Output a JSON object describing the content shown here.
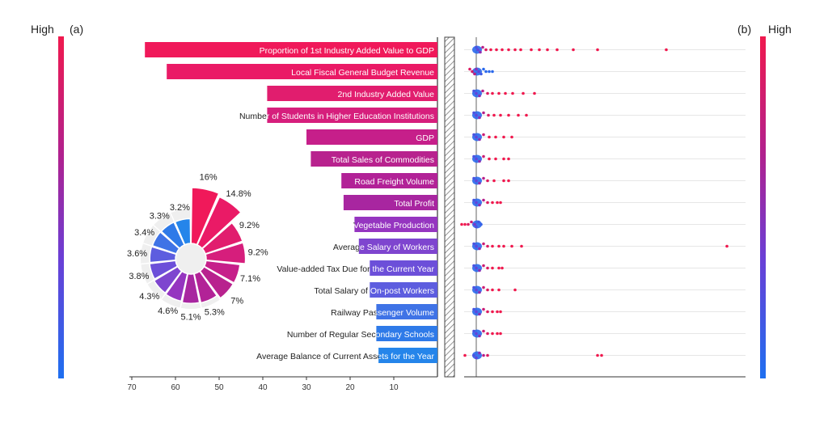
{
  "chart_data": [
    {
      "panel": "(a)",
      "type": "bar",
      "orientation": "horizontal",
      "x_direction": "reversed",
      "xlim": [
        0,
        70
      ],
      "xticks": [
        70,
        60,
        50,
        40,
        30,
        20,
        10
      ],
      "legend_top": "High",
      "categories": [
        "Proportion of 1st Industry Added Value to GDP",
        "Local Fiscal General Budget Revenue",
        "2nd Industry Added Value",
        "Number of Students in Higher Education Institutions",
        "GDP",
        "Total Sales of Commodities",
        "Road Freight Volume",
        "Total Profit",
        "Vegetable Production",
        "Average Salary of Workers",
        "Value-added Tax Due for the Current Year",
        "Total Salary of On-post Workers",
        "Railway Passenger Volume",
        "Number of Regular Secondary Schools",
        "Average Balance of Current Assets for the Year"
      ],
      "values": [
        67,
        62,
        39,
        39,
        30,
        29,
        22,
        21.5,
        19,
        18,
        15.5,
        15.5,
        14,
        14,
        13.5
      ],
      "colors": [
        "#f0195a",
        "#ea1a66",
        "#e11d6e",
        "#d61e7c",
        "#c61f8a",
        "#b8228e",
        "#b22297",
        "#a826a0",
        "#9535c0",
        "#7e45cf",
        "#6c4fd9",
        "#5d5ddf",
        "#3f73e6",
        "#2e7ae8",
        "#2585ea"
      ]
    },
    {
      "panel": "(a) inset",
      "type": "pie",
      "style": "polar-bar",
      "labels": [
        "16%",
        "14.8%",
        "9.2%",
        "9.2%",
        "7.1%",
        "7%",
        "5.3%",
        "5.1%",
        "4.6%",
        "4.3%",
        "3.8%",
        "3.6%",
        "3.4%",
        "3.3%",
        "3.2%"
      ],
      "values": [
        16,
        14.8,
        9.2,
        9.2,
        7.1,
        7,
        5.3,
        5.1,
        4.6,
        4.3,
        3.8,
        3.6,
        3.4,
        3.3,
        3.2
      ],
      "colors": [
        "#f0195a",
        "#ea1a66",
        "#e11d6e",
        "#d61e7c",
        "#c61f8a",
        "#b8228e",
        "#b22297",
        "#a826a0",
        "#9535c0",
        "#7e45cf",
        "#6c4fd9",
        "#5d5ddf",
        "#3f73e6",
        "#2e7ae8",
        "#2585ea"
      ]
    },
    {
      "panel": "(b)",
      "type": "scatter",
      "style": "beeswarm",
      "legend_top": "High",
      "colormap": [
        "#1e6ff0",
        "#6a3fd6",
        "#b0218f",
        "#f0194e"
      ],
      "rows": [
        {
          "points": [
            [
              0,
              0.2
            ],
            [
              2,
              0.3
            ],
            [
              5,
              0.5
            ],
            [
              8,
              0.7
            ],
            [
              12,
              0.9
            ],
            [
              18,
              1.0
            ],
            [
              25,
              1.0
            ],
            [
              32,
              1.0
            ],
            [
              40,
              1.0
            ],
            [
              48,
              1.0
            ],
            [
              55,
              1.0
            ],
            [
              68,
              1.0
            ],
            [
              78,
              1.0
            ],
            [
              88,
              1.0
            ],
            [
              100,
              1.0
            ],
            [
              120,
              1.0
            ],
            [
              150,
              1.0
            ],
            [
              235,
              1.0
            ]
          ]
        },
        {
          "points": [
            [
              -8,
              0.9
            ],
            [
              -5,
              0.85
            ],
            [
              -2,
              0.75
            ],
            [
              0,
              0.5
            ],
            [
              3,
              0.3
            ],
            [
              6,
              0.15
            ],
            [
              9,
              0.05
            ],
            [
              12,
              0.05
            ],
            [
              16,
              0.05
            ],
            [
              20,
              0.05
            ]
          ]
        },
        {
          "points": [
            [
              -3,
              0.2
            ],
            [
              0,
              0.3
            ],
            [
              4,
              0.5
            ],
            [
              8,
              0.7
            ],
            [
              14,
              0.9
            ],
            [
              20,
              1.0
            ],
            [
              28,
              1.0
            ],
            [
              36,
              1.0
            ],
            [
              45,
              1.0
            ],
            [
              58,
              1.0
            ],
            [
              72,
              1.0
            ]
          ]
        },
        {
          "points": [
            [
              -3,
              0.2
            ],
            [
              0,
              0.3
            ],
            [
              4,
              0.5
            ],
            [
              9,
              0.7
            ],
            [
              15,
              0.9
            ],
            [
              22,
              1.0
            ],
            [
              30,
              1.0
            ],
            [
              40,
              1.0
            ],
            [
              52,
              1.0
            ],
            [
              62,
              1.0
            ]
          ]
        },
        {
          "points": [
            [
              -3,
              0.2
            ],
            [
              0,
              0.3
            ],
            [
              4,
              0.5
            ],
            [
              9,
              0.8
            ],
            [
              16,
              1.0
            ],
            [
              24,
              1.0
            ],
            [
              34,
              1.0
            ],
            [
              44,
              1.0
            ]
          ]
        },
        {
          "points": [
            [
              -3,
              0.2
            ],
            [
              0,
              0.3
            ],
            [
              4,
              0.5
            ],
            [
              9,
              0.8
            ],
            [
              16,
              1.0
            ],
            [
              24,
              1.0
            ],
            [
              34,
              1.0
            ],
            [
              40,
              1.0
            ]
          ]
        },
        {
          "points": [
            [
              -3,
              0.2
            ],
            [
              0,
              0.3
            ],
            [
              4,
              0.5
            ],
            [
              9,
              0.7
            ],
            [
              14,
              0.9
            ],
            [
              22,
              1.0
            ],
            [
              34,
              1.0
            ],
            [
              40,
              1.0
            ]
          ]
        },
        {
          "points": [
            [
              -3,
              0.2
            ],
            [
              0,
              0.3
            ],
            [
              4,
              0.5
            ],
            [
              9,
              0.7
            ],
            [
              14,
              0.9
            ],
            [
              20,
              1.0
            ],
            [
              26,
              1.0
            ],
            [
              30,
              1.0
            ]
          ]
        },
        {
          "points": [
            [
              -18,
              1.0
            ],
            [
              -14,
              1.0
            ],
            [
              -10,
              0.9
            ],
            [
              -6,
              0.8
            ],
            [
              -2,
              0.4
            ],
            [
              0,
              0.2
            ],
            [
              3,
              0.15
            ],
            [
              6,
              0.1
            ]
          ]
        },
        {
          "points": [
            [
              -3,
              0.2
            ],
            [
              0,
              0.3
            ],
            [
              4,
              0.5
            ],
            [
              9,
              0.8
            ],
            [
              14,
              0.9
            ],
            [
              20,
              1.0
            ],
            [
              28,
              1.0
            ],
            [
              34,
              1.0
            ],
            [
              44,
              1.0
            ],
            [
              56,
              1.0
            ],
            [
              310,
              1.0
            ]
          ]
        },
        {
          "points": [
            [
              -3,
              0.2
            ],
            [
              0,
              0.3
            ],
            [
              4,
              0.5
            ],
            [
              9,
              0.8
            ],
            [
              14,
              0.9
            ],
            [
              20,
              1.0
            ],
            [
              28,
              1.0
            ],
            [
              32,
              1.0
            ]
          ]
        },
        {
          "points": [
            [
              -3,
              0.2
            ],
            [
              0,
              0.3
            ],
            [
              4,
              0.5
            ],
            [
              9,
              0.8
            ],
            [
              14,
              0.9
            ],
            [
              20,
              1.0
            ],
            [
              28,
              1.0
            ],
            [
              48,
              1.0
            ]
          ]
        },
        {
          "points": [
            [
              -3,
              0.2
            ],
            [
              0,
              0.3
            ],
            [
              4,
              0.5
            ],
            [
              9,
              0.8
            ],
            [
              14,
              0.9
            ],
            [
              20,
              1.0
            ],
            [
              26,
              1.0
            ],
            [
              30,
              1.0
            ]
          ]
        },
        {
          "points": [
            [
              -3,
              0.2
            ],
            [
              0,
              0.3
            ],
            [
              4,
              0.5
            ],
            [
              9,
              0.8
            ],
            [
              14,
              0.9
            ],
            [
              20,
              1.0
            ],
            [
              26,
              1.0
            ],
            [
              30,
              1.0
            ]
          ]
        },
        {
          "points": [
            [
              -14,
              1.0
            ],
            [
              -3,
              0.2
            ],
            [
              0,
              0.3
            ],
            [
              4,
              0.5
            ],
            [
              9,
              0.7
            ],
            [
              14,
              0.9
            ],
            [
              150,
              1.0
            ],
            [
              155,
              1.0
            ]
          ]
        }
      ]
    }
  ],
  "labels": {
    "panel_a": "(a)",
    "panel_b": "(b)",
    "high_left": "High",
    "high_right": "High"
  }
}
